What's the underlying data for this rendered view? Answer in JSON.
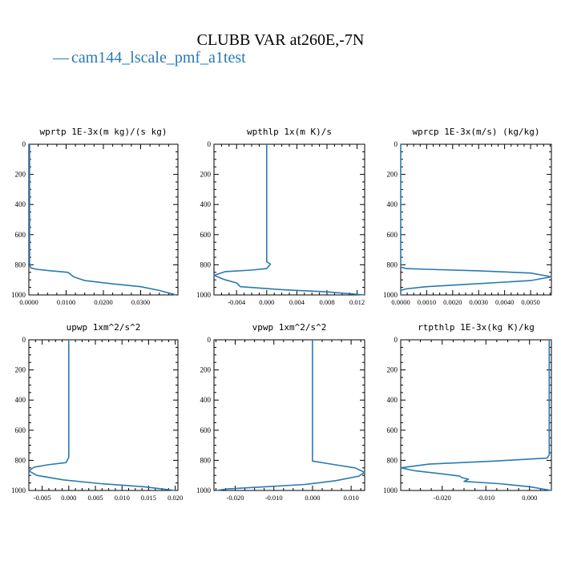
{
  "figure": {
    "title": "CLUBB VAR at260E,-7N",
    "legend_label": "cam144_lscale_pmf_a1test",
    "legend_symbol": "—",
    "series_color": "#2a7ab0"
  },
  "chart_data": [
    {
      "type": "line",
      "title": "wprtp  1E-3x(m kg)/(s kg)",
      "xlabel": "",
      "ylabel": "",
      "xlim": [
        0.0,
        0.04
      ],
      "ylim": [
        1000,
        0
      ],
      "xticks": [
        "0.0000",
        "0.0100",
        "0.0200",
        "0.0300"
      ],
      "xtick_values": [
        0.0,
        0.01,
        0.02,
        0.03
      ],
      "yticks": [
        "0",
        "200",
        "400",
        "600",
        "800",
        "1000"
      ],
      "grid": false,
      "series": [
        {
          "x": [
            0.0002,
            0.0002,
            0.0002,
            0.0002,
            0.0002,
            0.0002,
            0.0003,
            0.0005,
            0.002,
            0.006,
            0.0105,
            0.012,
            0.015,
            0.022,
            0.03,
            0.035,
            0.0395
          ],
          "y": [
            0,
            200,
            400,
            600,
            750,
            790,
            805,
            820,
            830,
            840,
            850,
            880,
            905,
            925,
            945,
            970,
            1000
          ]
        }
      ]
    },
    {
      "type": "line",
      "title": "wpthlp  1x(m K)/s",
      "xlabel": "",
      "ylabel": "",
      "xlim": [
        -0.007,
        0.013
      ],
      "ylim": [
        1000,
        0
      ],
      "xticks": [
        "-0.004",
        "0.000",
        "0.004",
        "0.008",
        "0.012"
      ],
      "xtick_values": [
        -0.004,
        0.0,
        0.004,
        0.008,
        0.012
      ],
      "yticks": [
        "0",
        "200",
        "400",
        "600",
        "800",
        "1000"
      ],
      "grid": false,
      "series": [
        {
          "x": [
            0.0,
            0.0,
            0.0,
            0.0,
            0.0,
            0.0005,
            0.0,
            -0.002,
            -0.0055,
            -0.007,
            -0.0055,
            -0.004,
            -0.0035,
            0.002,
            0.008,
            0.013
          ],
          "y": [
            0,
            200,
            400,
            600,
            780,
            795,
            825,
            835,
            845,
            870,
            900,
            920,
            945,
            965,
            980,
            1000
          ]
        }
      ]
    },
    {
      "type": "line",
      "title": "wprcp  1E-3x(m/s) (kg/kg)",
      "xlabel": "",
      "ylabel": "",
      "xlim": [
        0.0,
        0.0058
      ],
      "ylim": [
        1000,
        0
      ],
      "xticks": [
        "0.0000",
        "0.0010",
        "0.0020",
        "0.0030",
        "0.0040",
        "0.0050"
      ],
      "xtick_values": [
        0.0,
        0.001,
        0.002,
        0.003,
        0.004,
        0.005
      ],
      "yticks": [
        "0",
        "200",
        "400",
        "600",
        "800",
        "1000"
      ],
      "grid": false,
      "series": [
        {
          "x": [
            0.0,
            0.0,
            0.0,
            0.0,
            0.0,
            0.0,
            0.0002,
            0.001,
            0.003,
            0.005,
            0.0058,
            0.005,
            0.003,
            0.001,
            0.0002,
            0.0,
            0.0
          ],
          "y": [
            0,
            200,
            400,
            600,
            800,
            815,
            825,
            830,
            840,
            855,
            880,
            905,
            925,
            945,
            960,
            970,
            1000
          ]
        }
      ]
    },
    {
      "type": "line",
      "title": "upwp  1xm^2/s^2",
      "xlabel": "",
      "ylabel": "",
      "xlim": [
        -0.0075,
        0.0205
      ],
      "ylim": [
        1000,
        0
      ],
      "xticks": [
        "-0.005",
        "0.000",
        "0.005",
        "0.010",
        "0.015",
        "0.020"
      ],
      "xtick_values": [
        -0.005,
        0.0,
        0.005,
        0.01,
        0.015,
        0.02
      ],
      "yticks": [
        "0",
        "200",
        "400",
        "600",
        "800",
        "1000"
      ],
      "grid": false,
      "series": [
        {
          "x": [
            0.0,
            0.0,
            0.0,
            0.0,
            0.0,
            -0.0005,
            -0.004,
            -0.0065,
            -0.0075,
            -0.006,
            -0.001,
            0.006,
            0.014,
            0.02
          ],
          "y": [
            0,
            200,
            400,
            600,
            780,
            815,
            830,
            845,
            870,
            900,
            930,
            955,
            975,
            1000
          ]
        }
      ]
    },
    {
      "type": "line",
      "title": "vpwp  1xm^2/s^2",
      "xlabel": "",
      "ylabel": "",
      "xlim": [
        -0.0255,
        0.0135
      ],
      "ylim": [
        1000,
        0
      ],
      "xticks": [
        "-0.020",
        "-0.010",
        "0.000",
        "0.010"
      ],
      "xtick_values": [
        -0.02,
        -0.01,
        0.0,
        0.01
      ],
      "yticks": [
        "0",
        "200",
        "400",
        "600",
        "800",
        "1000"
      ],
      "grid": false,
      "series": [
        {
          "x": [
            0.0,
            0.0,
            0.0,
            0.0,
            0.0,
            0.0,
            0.006,
            0.011,
            0.0135,
            0.012,
            0.006,
            -0.002,
            -0.012,
            -0.022,
            -0.025
          ],
          "y": [
            0,
            200,
            400,
            600,
            780,
            805,
            830,
            850,
            880,
            905,
            935,
            960,
            975,
            990,
            1000
          ]
        }
      ]
    },
    {
      "type": "line",
      "title": "rtpthlp  1E-3x(kg K)/kg",
      "xlabel": "",
      "ylabel": "",
      "xlim": [
        -0.0295,
        0.005
      ],
      "ylim": [
        1000,
        0
      ],
      "xticks": [
        "-0.020",
        "-0.010",
        "0.000"
      ],
      "xtick_values": [
        -0.02,
        -0.01,
        0.0
      ],
      "yticks": [
        "0",
        "200",
        "400",
        "600",
        "800",
        "1000"
      ],
      "grid": false,
      "series": [
        {
          "x": [
            0.0045,
            0.0045,
            0.0045,
            0.0045,
            0.0045,
            0.0045,
            0.004,
            -0.008,
            -0.023,
            -0.0295,
            -0.026,
            -0.02,
            -0.016,
            -0.0155,
            -0.014,
            -0.015,
            -0.007,
            0.0,
            0.005
          ],
          "y": [
            0,
            200,
            400,
            600,
            740,
            765,
            785,
            805,
            825,
            850,
            870,
            890,
            905,
            915,
            925,
            940,
            955,
            975,
            1000
          ]
        }
      ]
    }
  ]
}
